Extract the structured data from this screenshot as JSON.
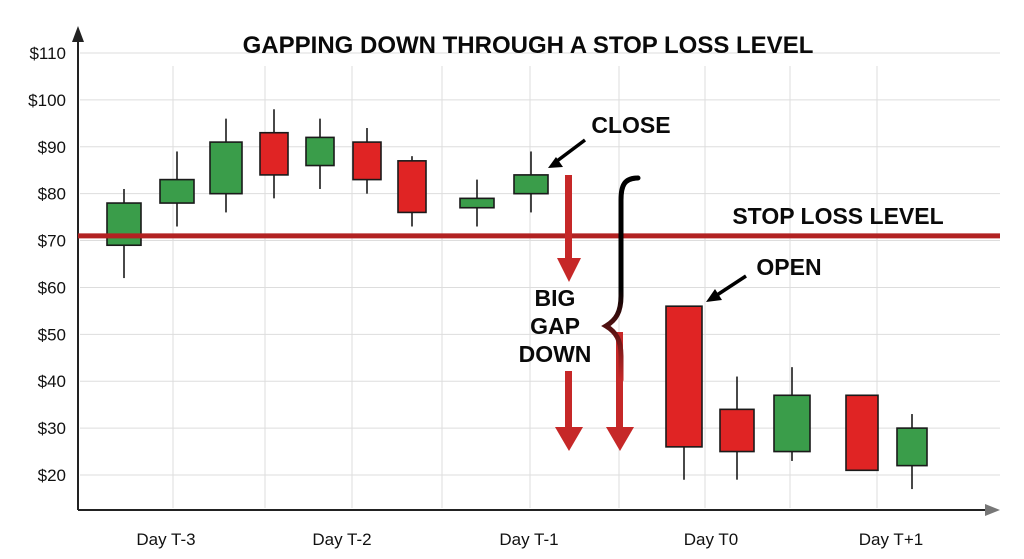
{
  "chart_data": {
    "type": "candlestick",
    "title": "GAPPING DOWN THROUGH A STOP LOSS LEVEL",
    "ylim": [
      15,
      115
    ],
    "y_ticks": [
      "$110",
      "$100",
      "$90",
      "$80",
      "$70",
      "$60",
      "$50",
      "$40",
      "$30",
      "$20"
    ],
    "y_tick_values": [
      110,
      100,
      90,
      80,
      70,
      60,
      50,
      40,
      30,
      20
    ],
    "x_labels": [
      "Day T-3",
      "Day T-2",
      "Day T-1",
      "Day T0",
      "Day T+1"
    ],
    "grid": true,
    "stop_loss": {
      "value": 71,
      "label": "STOP LOSS LEVEL",
      "color": "#b22222"
    },
    "candles": [
      {
        "open": 69,
        "high": 81,
        "low": 62,
        "close": 78,
        "color": "green"
      },
      {
        "open": 78,
        "high": 89,
        "low": 73,
        "close": 83,
        "color": "green"
      },
      {
        "open": 80,
        "high": 96,
        "low": 76,
        "close": 91,
        "color": "green"
      },
      {
        "open": 93,
        "high": 98,
        "low": 79,
        "close": 84,
        "color": "red"
      },
      {
        "open": 86,
        "high": 96,
        "low": 81,
        "close": 92,
        "color": "green"
      },
      {
        "open": 91,
        "high": 94,
        "low": 80,
        "close": 83,
        "color": "red"
      },
      {
        "open": 87,
        "high": 88,
        "low": 73,
        "close": 76,
        "color": "red"
      },
      {
        "open": 77,
        "high": 83,
        "low": 73,
        "close": 79,
        "color": "green"
      },
      {
        "open": 80,
        "high": 89,
        "low": 76,
        "close": 84,
        "color": "green"
      },
      {
        "open": 56,
        "high": 56,
        "low": 19,
        "close": 26,
        "color": "red"
      },
      {
        "open": 34,
        "high": 41,
        "low": 19,
        "close": 25,
        "color": "red"
      },
      {
        "open": 25,
        "high": 43,
        "low": 23,
        "close": 37,
        "color": "green"
      },
      {
        "open": 37,
        "high": 37,
        "low": 21,
        "close": 21,
        "color": "red"
      },
      {
        "open": 22,
        "high": 33,
        "low": 17,
        "close": 30,
        "color": "green"
      }
    ],
    "annotations": {
      "close": "CLOSE",
      "open": "OPEN",
      "gap": [
        "BIG",
        "GAP",
        "DOWN"
      ]
    },
    "colors": {
      "up": "#3a9d4a",
      "down": "#e02424",
      "outline": "#1a1a1a",
      "arrow": "#c62828",
      "grid": "#dddddd"
    }
  }
}
